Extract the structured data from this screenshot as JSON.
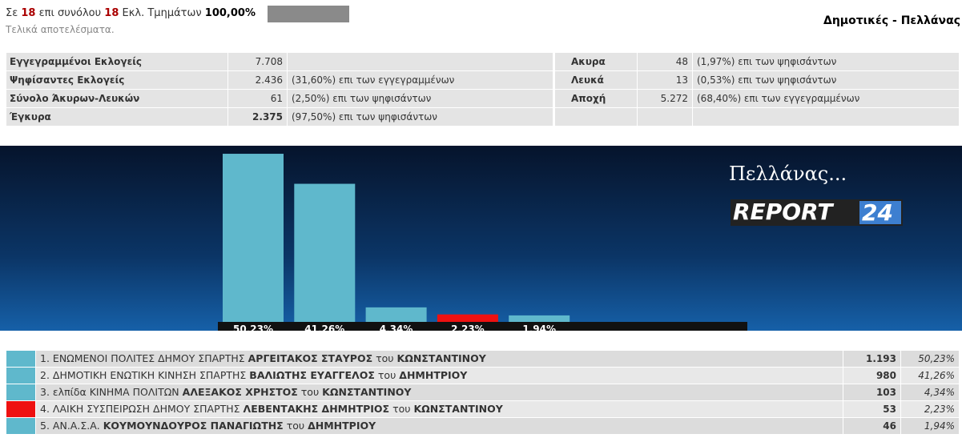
{
  "header": {
    "prefix": "Σε",
    "counted": "18",
    "middle": "επι συνόλου",
    "total": "18",
    "suffix": "Εκλ. Τμημάτων",
    "percent": "100,00%",
    "subtitle": "Τελικά αποτελέσματα.",
    "title": "Δημοτικές - Πελλάνας"
  },
  "stats": {
    "left": [
      [
        "Εγγεγραμμένοι Εκλογείς",
        "7.708",
        ""
      ],
      [
        "Ψηφίσαντες Εκλογείς",
        "2.436",
        "(31,60%) επι των εγγεγραμμένων"
      ],
      [
        "Σύνολο Άκυρων-Λευκών",
        "61",
        "(2,50%) επι των ψηφισάντων"
      ],
      [
        "Έγκυρα",
        "2.375",
        "(97,50%) επι των ψηφισάντων"
      ]
    ],
    "right": [
      [
        "Ακυρα",
        "48",
        "(1,97%) επι των ψηφισάντων"
      ],
      [
        "Λευκά",
        "13",
        "(0,53%) επι των ψηφισάντων"
      ],
      [
        "Αποχή",
        "5.272",
        "(68,40%) επι των εγγεγραμμένων"
      ]
    ]
  },
  "chart_data": {
    "type": "bar",
    "title": "Πελλάνας...",
    "logo_text": "REPORT",
    "logo_number": "24",
    "values": [
      50.23,
      41.26,
      4.34,
      2.23,
      1.94
    ],
    "value_labels": [
      "50,23%",
      "41,26%",
      "4,34%",
      "2,23%",
      "1,94%"
    ],
    "colors": [
      "#5fb8cc",
      "#5fb8cc",
      "#5fb8cc",
      "#ee1111",
      "#5fb8cc"
    ]
  },
  "results": [
    {
      "rank": "1.",
      "party": "ΕΝΩΜΕΝΟΙ ΠΟΛΙΤΕΣ ΔΗΜΟΥ ΣΠΑΡΤΗΣ",
      "candidate": "ΑΡΓΕΙΤΑΚΟΣ ΣΤΑΥΡΟΣ",
      "of": "του",
      "father": "ΚΩΝΣΤΑΝΤΙΝΟΥ",
      "votes": "1.193",
      "percent": "50,23%"
    },
    {
      "rank": "2.",
      "party": "ΔΗΜΟΤΙΚΗ ΕΝΩΤΙΚΗ ΚΙΝΗΣΗ ΣΠΑΡΤΗΣ",
      "candidate": "ΒΑΛΙΩΤΗΣ ΕΥΑΓΓΕΛΟΣ",
      "of": "του",
      "father": "ΔΗΜΗΤΡΙΟΥ",
      "votes": "980",
      "percent": "41,26%"
    },
    {
      "rank": "3.",
      "party": "ελπίδα ΚΙΝΗΜΑ ΠΟΛΙΤΩΝ",
      "candidate": "ΑΛΕΞΑΚΟΣ ΧΡΗΣΤΟΣ",
      "of": "του",
      "father": "ΚΩΝΣΤΑΝΤΙΝΟΥ",
      "votes": "103",
      "percent": "4,34%"
    },
    {
      "rank": "4.",
      "party": "ΛΑΙΚΗ ΣΥΣΠΕΙΡΩΣΗ ΔΗΜΟΥ ΣΠΑΡΤΗΣ",
      "candidate": "ΛΕΒΕΝΤΑΚΗΣ ΔΗΜΗΤΡΙΟΣ",
      "of": "του",
      "father": "ΚΩΝΣΤΑΝΤΙΝΟΥ",
      "votes": "53",
      "percent": "2,23%"
    },
    {
      "rank": "5.",
      "party": "ΑΝ.Α.Σ.Α.",
      "candidate": "ΚΟΥΜΟΥΝΔΟΥΡΟΣ ΠΑΝΑΓΙΩΤΗΣ",
      "of": "του",
      "father": "ΔΗΜΗΤΡΙΟΥ",
      "votes": "46",
      "percent": "1,94%"
    }
  ]
}
